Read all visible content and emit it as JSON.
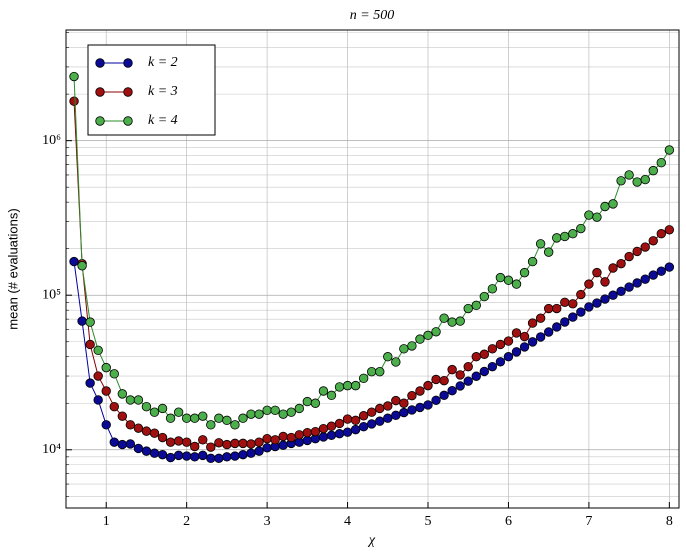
{
  "chart_data": {
    "type": "line",
    "title": "n = 500",
    "xlabel": "χ",
    "ylabel": "mean (# evaluations)",
    "x": [
      0.6,
      0.7,
      0.8,
      0.9,
      1.0,
      1.1,
      1.2,
      1.3,
      1.4,
      1.5,
      1.6,
      1.7,
      1.8,
      1.9,
      2.0,
      2.1,
      2.2,
      2.3,
      2.4,
      2.5,
      2.6,
      2.7,
      2.8,
      2.9,
      3.0,
      3.1,
      3.2,
      3.3,
      3.4,
      3.5,
      3.6,
      3.7,
      3.8,
      3.9,
      4.0,
      4.1,
      4.2,
      4.3,
      4.4,
      4.5,
      4.6,
      4.7,
      4.8,
      4.9,
      5.0,
      5.1,
      5.2,
      5.3,
      5.4,
      5.5,
      5.6,
      5.7,
      5.8,
      5.9,
      6.0,
      6.1,
      6.2,
      6.3,
      6.4,
      6.5,
      6.6,
      6.7,
      6.8,
      6.9,
      7.0,
      7.1,
      7.2,
      7.3,
      7.4,
      7.5,
      7.6,
      7.7,
      7.8,
      7.9,
      8.0
    ],
    "series": [
      {
        "name": "k = 2",
        "color": "#0000a0",
        "fill": "#0a0a96",
        "values": [
          165000,
          68000,
          27000,
          21000,
          14500,
          11200,
          10800,
          10900,
          10200,
          9800,
          9500,
          9300,
          8900,
          9200,
          9100,
          9000,
          9200,
          8800,
          8800,
          9000,
          9100,
          9300,
          9500,
          9800,
          10300,
          10500,
          10700,
          11000,
          11200,
          11500,
          11800,
          12100,
          12400,
          12700,
          13000,
          13500,
          14100,
          14700,
          15300,
          16000,
          16700,
          17400,
          18100,
          18800,
          19500,
          20900,
          22500,
          24100,
          25900,
          27800,
          29900,
          32100,
          34500,
          37100,
          40000,
          43000,
          46300,
          49900,
          53700,
          57800,
          62300,
          67100,
          72200,
          77800,
          84000,
          89000,
          94500,
          100000,
          106000,
          113000,
          120000,
          127000,
          135000,
          143000,
          152000
        ]
      },
      {
        "name": "k = 3",
        "color": "#8b0000",
        "fill": "#a01010",
        "values": [
          1800000,
          160000,
          48000,
          30000,
          24000,
          19000,
          16500,
          14500,
          13800,
          13200,
          12800,
          12000,
          11200,
          11400,
          11200,
          10500,
          11600,
          10400,
          11100,
          10800,
          11000,
          11000,
          10900,
          11200,
          11800,
          11600,
          12200,
          12000,
          12500,
          12900,
          13100,
          13700,
          14200,
          14800,
          15800,
          15500,
          16600,
          17500,
          18500,
          19200,
          20800,
          20000,
          22400,
          24000,
          26000,
          28500,
          28000,
          33000,
          30500,
          34500,
          40000,
          41500,
          45000,
          48000,
          50500,
          57000,
          54000,
          66000,
          71000,
          82000,
          82000,
          90000,
          88000,
          101000,
          118000,
          140000,
          122000,
          150000,
          160000,
          178000,
          192000,
          205000,
          225000,
          250000,
          265000
        ]
      },
      {
        "name": "k = 4",
        "color": "#2e8b2e",
        "fill": "#4caf4c",
        "values": [
          2600000,
          155000,
          67000,
          44000,
          34000,
          31000,
          23000,
          21000,
          21000,
          19000,
          17500,
          18500,
          16000,
          17500,
          16000,
          16000,
          16500,
          14500,
          16000,
          15500,
          14500,
          16000,
          17000,
          17000,
          18000,
          18000,
          17000,
          17500,
          18500,
          20500,
          20000,
          24000,
          22500,
          25500,
          26000,
          26000,
          29000,
          32000,
          32000,
          40000,
          37000,
          45000,
          47000,
          52000,
          55000,
          58000,
          71000,
          67000,
          68000,
          82000,
          86000,
          98000,
          110000,
          130000,
          125000,
          118000,
          140000,
          165000,
          215000,
          190000,
          235000,
          240000,
          250000,
          270000,
          330000,
          320000,
          375000,
          390000,
          550000,
          600000,
          540000,
          560000,
          640000,
          720000,
          870000
        ]
      }
    ],
    "xlim": [
      0.5,
      8.12
    ],
    "xticks": [
      1,
      2,
      3,
      4,
      5,
      6,
      7,
      8
    ],
    "ylim": [
      4200,
      5200000
    ],
    "yticks": [
      {
        "value": 10000,
        "label": "10⁴"
      },
      {
        "value": 100000,
        "label": "10⁵"
      },
      {
        "value": 1000000,
        "label": "10⁶"
      }
    ],
    "log_y": true,
    "grid": true,
    "minor_grid": true,
    "legend": "upper-left"
  }
}
